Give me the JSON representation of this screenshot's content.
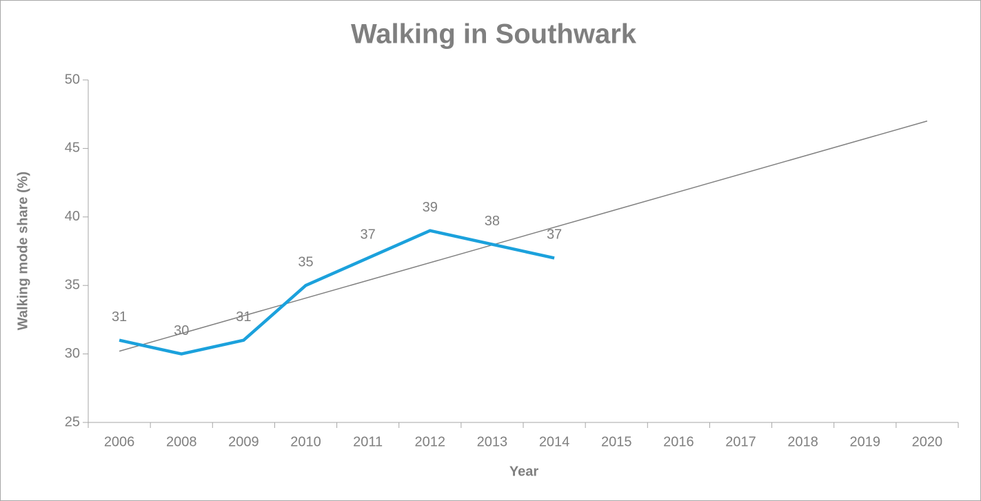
{
  "chart_data": {
    "type": "line",
    "title": "Walking in Southwark",
    "x_label": "Year",
    "y_label": "Walking mode share (%)",
    "categories": [
      "2006",
      "2008",
      "2009",
      "2010",
      "2011",
      "2012",
      "2013",
      "2014",
      "2015",
      "2016",
      "2017",
      "2018",
      "2019",
      "2020"
    ],
    "series": [
      {
        "color": "#1ba1dc",
        "values": [
          31,
          30,
          31,
          35,
          37,
          39,
          38,
          37,
          null,
          null,
          null,
          null,
          null,
          null
        ]
      }
    ],
    "trendline": {
      "color": "#808080",
      "values": [
        30.2,
        47
      ]
    },
    "ylim": [
      25,
      50
    ],
    "yticks": [
      25,
      30,
      35,
      40,
      45,
      50
    ],
    "grid": false
  }
}
